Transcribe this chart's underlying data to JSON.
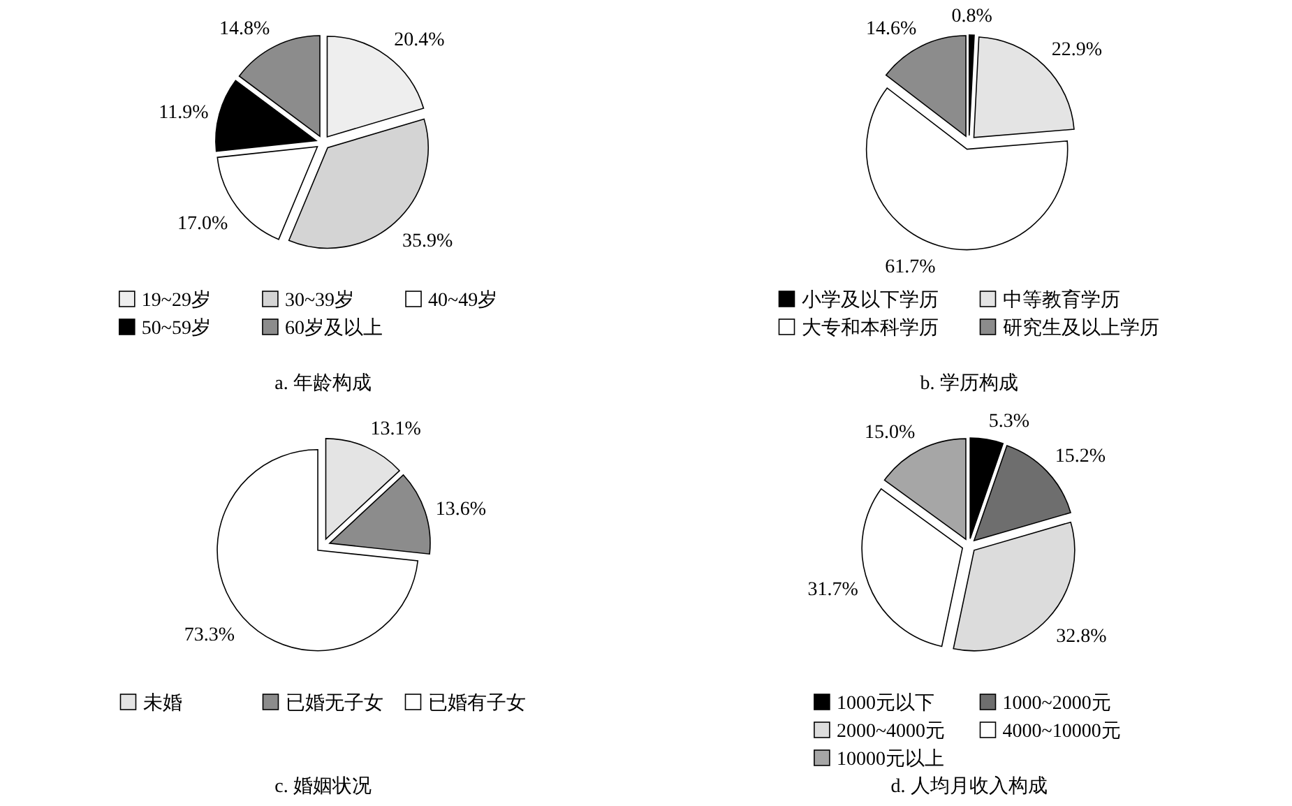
{
  "chart_data": [
    {
      "type": "pie",
      "title": "a. 年龄构成",
      "categories": [
        "19~29岁",
        "30~39岁",
        "40~49岁",
        "50~59岁",
        "60岁及以上"
      ],
      "values": [
        20.4,
        35.9,
        17.0,
        11.9,
        14.8
      ],
      "value_labels": [
        "20.4%",
        "35.9%",
        "17.0%",
        "11.9%",
        "14.8%"
      ],
      "colors": [
        "#eeeeee",
        "#d4d4d4",
        "#ffffff",
        "#000000",
        "#8c8c8c"
      ],
      "legend": "bottom"
    },
    {
      "type": "pie",
      "title": "b. 学历构成",
      "categories": [
        "小学及以下学历",
        "中等教育学历",
        "大专和本科学历",
        "研究生及以上学历"
      ],
      "values": [
        0.8,
        22.9,
        61.7,
        14.6
      ],
      "value_labels": [
        "0.8%",
        "22.9%",
        "61.7%",
        "14.6%"
      ],
      "colors": [
        "#000000",
        "#e4e4e4",
        "#ffffff",
        "#8c8c8c"
      ],
      "legend": "bottom"
    },
    {
      "type": "pie",
      "title": "c. 婚姻状况",
      "categories": [
        "未婚",
        "已婚无子女",
        "已婚有子女"
      ],
      "values": [
        13.1,
        13.6,
        73.3
      ],
      "value_labels": [
        "13.1%",
        "13.6%",
        "73.3%"
      ],
      "colors": [
        "#e4e4e4",
        "#8c8c8c",
        "#ffffff"
      ],
      "legend": "bottom"
    },
    {
      "type": "pie",
      "title": "d. 人均月收入构成",
      "categories": [
        "1000元以下",
        "1000~2000元",
        "2000~4000元",
        "4000~10000元",
        "10000元以上"
      ],
      "values": [
        5.3,
        15.2,
        32.8,
        31.7,
        15.0
      ],
      "value_labels": [
        "5.3%",
        "15.2%",
        "32.8%",
        "31.7%",
        "15.0%"
      ],
      "colors": [
        "#000000",
        "#6e6e6e",
        "#dcdcdc",
        "#ffffff",
        "#a6a6a6"
      ],
      "legend": "bottom"
    }
  ]
}
